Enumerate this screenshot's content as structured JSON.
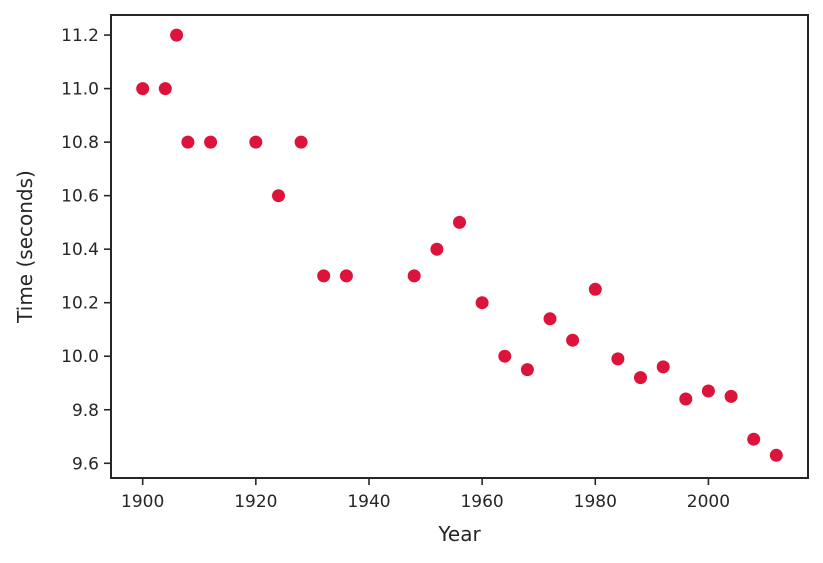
{
  "chart_data": {
    "type": "scatter",
    "title": "",
    "xlabel": "Year",
    "ylabel": "Time (seconds)",
    "xlim": [
      1894.4,
      2017.6
    ],
    "ylim": [
      9.545,
      11.275
    ],
    "xticks": [
      1900,
      1920,
      1940,
      1960,
      1980,
      2000
    ],
    "yticks": [
      9.6,
      9.8,
      10.0,
      10.2,
      10.4,
      10.6,
      10.8,
      11.0,
      11.2
    ],
    "xtick_labels": [
      "1900",
      "1920",
      "1940",
      "1960",
      "1980",
      "2000"
    ],
    "ytick_labels": [
      "9.6",
      "9.8",
      "10.0",
      "10.2",
      "10.4",
      "10.6",
      "10.8",
      "11.0",
      "11.2"
    ],
    "grid": false,
    "legend": false,
    "marker_color": "#DC143C",
    "axis_color": "#262626",
    "series": [
      {
        "x": [
          1900,
          1904,
          1906,
          1908,
          1912,
          1920,
          1924,
          1928,
          1932,
          1936,
          1948,
          1952,
          1956,
          1960,
          1964,
          1968,
          1972,
          1976,
          1980,
          1984,
          1988,
          1992,
          1996,
          2000,
          2004,
          2008,
          2012
        ],
        "y": [
          11.0,
          11.0,
          11.2,
          10.8,
          10.8,
          10.8,
          10.6,
          10.8,
          10.3,
          10.3,
          10.3,
          10.4,
          10.5,
          10.2,
          10.0,
          9.95,
          10.14,
          10.06,
          10.25,
          9.99,
          9.92,
          9.96,
          9.84,
          9.87,
          9.85,
          9.69,
          9.63
        ]
      }
    ]
  }
}
